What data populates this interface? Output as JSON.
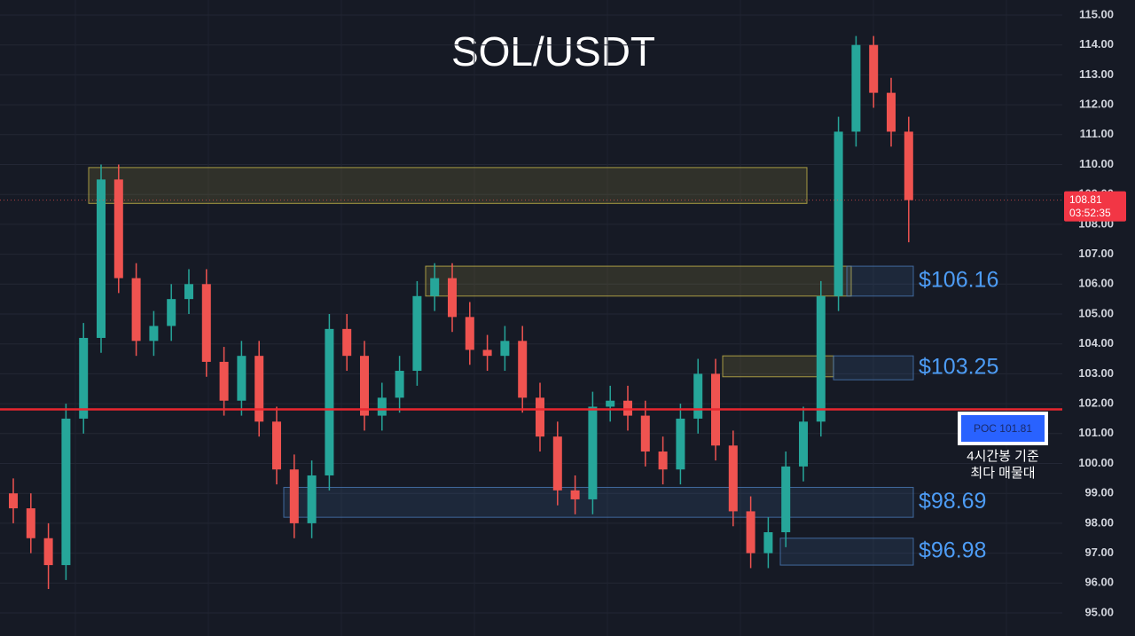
{
  "chart_data": {
    "type": "candlestick",
    "title": "SOL/USDT",
    "ylim": [
      95,
      115
    ],
    "yticks": [
      {
        "value": 95,
        "label": "95.00"
      },
      {
        "value": 96,
        "label": "96.00"
      },
      {
        "value": 97,
        "label": "97.00"
      },
      {
        "value": 98,
        "label": "98.00"
      },
      {
        "value": 99,
        "label": "99.00"
      },
      {
        "value": 100,
        "label": "100.00"
      },
      {
        "value": 101,
        "label": "101.00"
      },
      {
        "value": 102,
        "label": "102.00"
      },
      {
        "value": 103,
        "label": "103.00"
      },
      {
        "value": 104,
        "label": "104.00"
      },
      {
        "value": 105,
        "label": "105.00"
      },
      {
        "value": 106,
        "label": "106.00"
      },
      {
        "value": 107,
        "label": "107.00"
      },
      {
        "value": 108,
        "label": "108.00"
      },
      {
        "value": 109,
        "label": "109.00"
      },
      {
        "value": 110,
        "label": "110.00"
      },
      {
        "value": 111,
        "label": "111.00"
      },
      {
        "value": 112,
        "label": "112.00"
      },
      {
        "value": 113,
        "label": "113.00"
      },
      {
        "value": 114,
        "label": "114.00"
      },
      {
        "value": 115,
        "label": "115.00"
      }
    ],
    "grid": true,
    "up_color": "#26a69a",
    "down_color": "#ef5350",
    "candles": {
      "open": [
        99.0,
        98.5,
        97.5,
        96.6,
        101.5,
        104.2,
        109.5,
        106.2,
        104.1,
        104.6,
        105.5,
        106.0,
        103.4,
        102.1,
        103.6,
        101.4,
        99.8,
        98.0,
        99.6,
        104.5,
        103.6,
        101.6,
        102.2,
        103.1,
        105.6,
        106.2,
        104.9,
        103.8,
        103.6,
        104.1,
        102.2,
        100.9,
        99.1,
        98.8,
        101.9,
        102.1,
        101.6,
        100.4,
        99.8,
        101.5,
        103.0,
        100.6,
        98.4,
        97.0,
        97.7,
        99.9,
        101.4,
        105.6,
        111.1,
        114.0,
        112.4,
        111.1
      ],
      "high": [
        99.5,
        99.0,
        98.0,
        102.0,
        104.7,
        110.0,
        110.0,
        106.7,
        105.1,
        106.0,
        106.5,
        106.5,
        103.9,
        104.1,
        104.1,
        101.9,
        100.3,
        100.1,
        105.0,
        105.0,
        104.1,
        102.7,
        103.6,
        106.1,
        106.7,
        106.7,
        105.4,
        104.3,
        104.6,
        104.6,
        102.7,
        101.4,
        99.6,
        102.4,
        102.6,
        102.6,
        102.1,
        100.9,
        102.0,
        103.5,
        103.5,
        101.1,
        98.9,
        98.2,
        100.4,
        101.9,
        106.1,
        111.6,
        114.3,
        114.3,
        112.9,
        111.6
      ],
      "low": [
        98.0,
        97.0,
        95.8,
        96.1,
        101.0,
        103.7,
        105.7,
        103.6,
        103.6,
        104.1,
        105.0,
        102.9,
        101.6,
        101.6,
        100.9,
        99.3,
        97.5,
        97.5,
        99.1,
        103.1,
        101.1,
        101.1,
        101.7,
        102.6,
        105.1,
        104.4,
        103.3,
        103.1,
        103.1,
        101.7,
        100.4,
        98.6,
        98.3,
        98.3,
        101.4,
        101.1,
        99.9,
        99.3,
        99.3,
        101.0,
        100.1,
        97.9,
        96.5,
        96.5,
        97.2,
        99.4,
        100.9,
        105.1,
        110.6,
        111.9,
        110.6,
        107.4
      ],
      "close": [
        98.5,
        97.5,
        96.6,
        101.5,
        104.2,
        109.5,
        106.2,
        104.1,
        104.6,
        105.5,
        106.0,
        103.4,
        102.1,
        103.6,
        101.4,
        99.8,
        98.0,
        99.6,
        104.5,
        103.6,
        101.6,
        102.2,
        103.1,
        105.6,
        106.2,
        104.9,
        103.8,
        103.6,
        104.1,
        102.2,
        100.9,
        99.1,
        98.8,
        101.9,
        102.1,
        101.6,
        100.4,
        99.8,
        101.5,
        103.0,
        100.6,
        98.4,
        97.0,
        97.7,
        99.9,
        101.4,
        105.6,
        111.1,
        114.0,
        112.4,
        111.1,
        108.81
      ]
    },
    "last_price": 108.81,
    "countdown": "03:52:35",
    "poc": {
      "value": 101.81,
      "label": "POC  101.81"
    },
    "note": [
      "4시간봉 기준",
      "최다 매물대"
    ],
    "zones": [
      {
        "range": [
          108.7,
          109.9
        ],
        "color": "#c8b84a"
      },
      {
        "range": [
          105.6,
          106.6
        ],
        "color": "#c8b84a"
      },
      {
        "range": [
          102.9,
          103.6
        ],
        "color": "#c8b84a"
      },
      {
        "label": "$106.16",
        "range": [
          105.6,
          106.6
        ],
        "color": "#4a7ab8"
      },
      {
        "label": "$103.25",
        "range": [
          102.8,
          103.6
        ],
        "color": "#4a7ab8"
      },
      {
        "label": "$98.69",
        "range": [
          98.2,
          99.2
        ],
        "color": "#4a7ab8"
      },
      {
        "label": "$96.98",
        "range": [
          96.6,
          97.5
        ],
        "color": "#4a7ab8"
      }
    ]
  }
}
